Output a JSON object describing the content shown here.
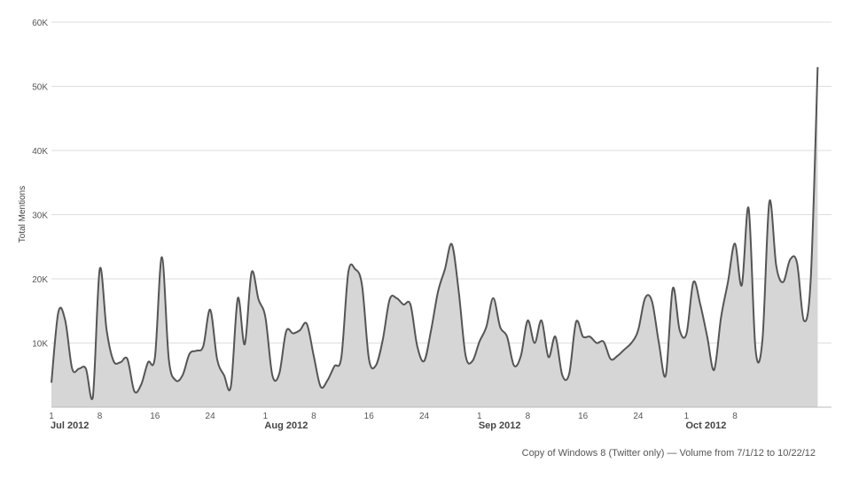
{
  "caption": "Copy of Windows 8 (Twitter only) — Volume from 7/1/12 to 10/22/12",
  "chart_data": {
    "type": "area",
    "title": "",
    "ylabel": "Total Mentions",
    "xlabel": "",
    "x_range": [
      "2012-07-01",
      "2012-10-22"
    ],
    "ylim": [
      0,
      60000
    ],
    "y_ticks": [
      {
        "value": 10000,
        "label": "10K"
      },
      {
        "value": 20000,
        "label": "20K"
      },
      {
        "value": 30000,
        "label": "30K"
      },
      {
        "value": 40000,
        "label": "40K"
      },
      {
        "value": 50000,
        "label": "50K"
      },
      {
        "value": 60000,
        "label": "60K"
      }
    ],
    "x_ticks": [
      {
        "date": "2012-07-01",
        "label": "1"
      },
      {
        "date": "2012-07-08",
        "label": "8"
      },
      {
        "date": "2012-07-16",
        "label": "16"
      },
      {
        "date": "2012-07-24",
        "label": "24"
      },
      {
        "date": "2012-08-01",
        "label": "1"
      },
      {
        "date": "2012-08-08",
        "label": "8"
      },
      {
        "date": "2012-08-16",
        "label": "16"
      },
      {
        "date": "2012-08-24",
        "label": "24"
      },
      {
        "date": "2012-09-01",
        "label": "1"
      },
      {
        "date": "2012-09-08",
        "label": "8"
      },
      {
        "date": "2012-09-16",
        "label": "16"
      },
      {
        "date": "2012-09-24",
        "label": "24"
      },
      {
        "date": "2012-10-01",
        "label": "1"
      },
      {
        "date": "2012-10-08",
        "label": "8"
      }
    ],
    "months": [
      {
        "date": "2012-07-01",
        "label": "Jul 2012"
      },
      {
        "date": "2012-08-01",
        "label": "Aug 2012"
      },
      {
        "date": "2012-09-01",
        "label": "Sep 2012"
      },
      {
        "date": "2012-10-01",
        "label": "Oct 2012"
      }
    ],
    "grid": true,
    "colors": {
      "line": "#555555",
      "fill": "#d6d6d6",
      "grid": "#dddddd"
    },
    "series": [
      {
        "points": [
          [
            "2012-07-01",
            3800
          ],
          [
            "2012-07-02",
            14800
          ],
          [
            "2012-07-03",
            13500
          ],
          [
            "2012-07-04",
            6000
          ],
          [
            "2012-07-05",
            6000
          ],
          [
            "2012-07-06",
            6000
          ],
          [
            "2012-07-07",
            1500
          ],
          [
            "2012-07-08",
            21500
          ],
          [
            "2012-07-09",
            12000
          ],
          [
            "2012-07-10",
            7200
          ],
          [
            "2012-07-11",
            7000
          ],
          [
            "2012-07-12",
            7500
          ],
          [
            "2012-07-13",
            2500
          ],
          [
            "2012-07-14",
            3500
          ],
          [
            "2012-07-15",
            7000
          ],
          [
            "2012-07-16",
            7800
          ],
          [
            "2012-07-17",
            23400
          ],
          [
            "2012-07-18",
            7500
          ],
          [
            "2012-07-19",
            4200
          ],
          [
            "2012-07-20",
            5000
          ],
          [
            "2012-07-21",
            8300
          ],
          [
            "2012-07-22",
            8800
          ],
          [
            "2012-07-23",
            9500
          ],
          [
            "2012-07-24",
            15200
          ],
          [
            "2012-07-25",
            7500
          ],
          [
            "2012-07-26",
            5000
          ],
          [
            "2012-07-27",
            3300
          ],
          [
            "2012-07-28",
            17000
          ],
          [
            "2012-07-29",
            9800
          ],
          [
            "2012-07-30",
            21000
          ],
          [
            "2012-07-31",
            16800
          ],
          [
            "2012-08-01",
            14000
          ],
          [
            "2012-08-02",
            5000
          ],
          [
            "2012-08-03",
            5200
          ],
          [
            "2012-08-04",
            11800
          ],
          [
            "2012-08-05",
            11500
          ],
          [
            "2012-08-06",
            12000
          ],
          [
            "2012-08-07",
            13000
          ],
          [
            "2012-08-08",
            8000
          ],
          [
            "2012-08-09",
            3200
          ],
          [
            "2012-08-10",
            4200
          ],
          [
            "2012-08-11",
            6400
          ],
          [
            "2012-08-12",
            7800
          ],
          [
            "2012-08-13",
            21000
          ],
          [
            "2012-08-14",
            21500
          ],
          [
            "2012-08-15",
            19000
          ],
          [
            "2012-08-16",
            7500
          ],
          [
            "2012-08-17",
            6500
          ],
          [
            "2012-08-18",
            10500
          ],
          [
            "2012-08-19",
            16800
          ],
          [
            "2012-08-20",
            17000
          ],
          [
            "2012-08-21",
            16000
          ],
          [
            "2012-08-22",
            16000
          ],
          [
            "2012-08-23",
            9500
          ],
          [
            "2012-08-24",
            7200
          ],
          [
            "2012-08-25",
            12000
          ],
          [
            "2012-08-26",
            18000
          ],
          [
            "2012-08-27",
            21500
          ],
          [
            "2012-08-28",
            25400
          ],
          [
            "2012-08-29",
            18000
          ],
          [
            "2012-08-30",
            8000
          ],
          [
            "2012-08-31",
            7200
          ],
          [
            "2012-09-01",
            10200
          ],
          [
            "2012-09-02",
            12500
          ],
          [
            "2012-09-03",
            17000
          ],
          [
            "2012-09-04",
            12500
          ],
          [
            "2012-09-05",
            11000
          ],
          [
            "2012-09-06",
            6500
          ],
          [
            "2012-09-07",
            8000
          ],
          [
            "2012-09-08",
            13500
          ],
          [
            "2012-09-09",
            10000
          ],
          [
            "2012-09-10",
            13500
          ],
          [
            "2012-09-11",
            7800
          ],
          [
            "2012-09-12",
            11000
          ],
          [
            "2012-09-13",
            5000
          ],
          [
            "2012-09-14",
            5200
          ],
          [
            "2012-09-15",
            13300
          ],
          [
            "2012-09-16",
            11000
          ],
          [
            "2012-09-17",
            11000
          ],
          [
            "2012-09-18",
            10000
          ],
          [
            "2012-09-19",
            10200
          ],
          [
            "2012-09-20",
            7500
          ],
          [
            "2012-09-21",
            8000
          ],
          [
            "2012-09-22",
            9000
          ],
          [
            "2012-09-23",
            10000
          ],
          [
            "2012-09-24",
            12000
          ],
          [
            "2012-09-25",
            17000
          ],
          [
            "2012-09-26",
            16500
          ],
          [
            "2012-09-27",
            10000
          ],
          [
            "2012-09-28",
            5000
          ],
          [
            "2012-09-29",
            18500
          ],
          [
            "2012-09-30",
            12000
          ],
          [
            "2012-10-01",
            11500
          ],
          [
            "2012-10-02",
            19500
          ],
          [
            "2012-10-03",
            16000
          ],
          [
            "2012-10-04",
            11000
          ],
          [
            "2012-10-05",
            5800
          ],
          [
            "2012-10-06",
            14000
          ],
          [
            "2012-10-07",
            19500
          ],
          [
            "2012-10-08",
            25500
          ],
          [
            "2012-10-09",
            19000
          ],
          [
            "2012-10-10",
            31000
          ],
          [
            "2012-10-11",
            9000
          ],
          [
            "2012-10-12",
            10500
          ],
          [
            "2012-10-13",
            32000
          ],
          [
            "2012-10-14",
            22000
          ],
          [
            "2012-10-15",
            19500
          ],
          [
            "2012-10-16",
            23000
          ],
          [
            "2012-10-17",
            22500
          ],
          [
            "2012-10-18",
            13500
          ],
          [
            "2012-10-19",
            20000
          ],
          [
            "2012-10-20",
            53000
          ]
        ]
      }
    ]
  }
}
